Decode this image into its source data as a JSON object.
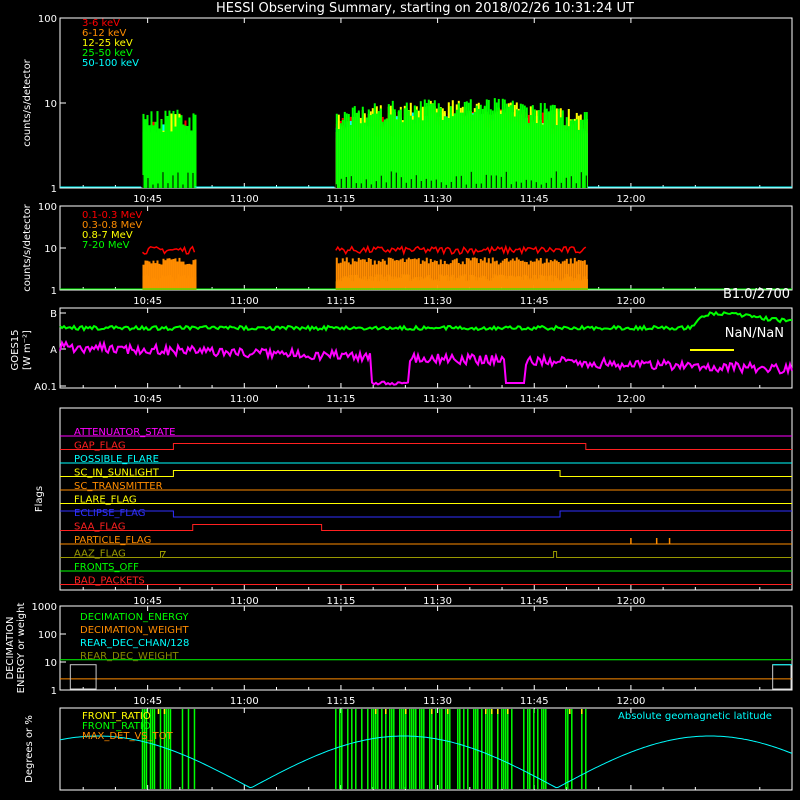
{
  "title": "HESSI Observing Summary, starting on 2018/02/26 10:31:24 UT",
  "time_ticks": [
    "10:45",
    "11:00",
    "11:15",
    "11:30",
    "11:45",
    "12:00"
  ],
  "chart_data": [
    {
      "type": "line",
      "panel": "low-energy",
      "ylabel": "counts/s/detector",
      "yscale": "log",
      "ylim": [
        1,
        100
      ],
      "yticks": [
        "1",
        "10",
        "100"
      ],
      "legend_position": "top-left",
      "time_ranges_observed": [
        [
          "10:44",
          "10:52"
        ],
        [
          "11:14",
          "11:53"
        ]
      ],
      "series": [
        {
          "name": "3-6 keV",
          "color": "#ff0000",
          "level": 5
        },
        {
          "name": "6-12 keV",
          "color": "#ff8c00",
          "level": 3
        },
        {
          "name": "12-25 keV",
          "color": "#ffff00",
          "level": 6
        },
        {
          "name": "25-50 keV",
          "color": "#00ff00",
          "level": 6.5
        },
        {
          "name": "50-100 keV",
          "color": "#00ffff",
          "level": 4.5
        }
      ]
    },
    {
      "type": "line",
      "panel": "high-energy",
      "ylabel": "counts/s/detector",
      "yscale": "log",
      "ylim": [
        1,
        100
      ],
      "yticks": [
        "1",
        "10",
        "100"
      ],
      "legend_position": "top-left",
      "series": [
        {
          "name": "0.1-0.3 MeV",
          "color": "#ff0000",
          "level": 9
        },
        {
          "name": "0.3-0.8 MeV",
          "color": "#ff8c00",
          "level": 5
        },
        {
          "name": "0.8-7 MeV",
          "color": "#ffff00",
          "level": 2
        },
        {
          "name": "7-20 MeV",
          "color": "#00ff00",
          "level": 1
        }
      ]
    },
    {
      "type": "line",
      "panel": "goes",
      "ylabel": "GOES15",
      "ylabel2": "[W m⁻²]",
      "yticks": [
        "A0.1",
        "A",
        "B"
      ],
      "annotation_1": "B1.0/2700",
      "annotation_2": "NaN/NaN",
      "series": [
        {
          "color": "#00ff00"
        },
        {
          "color": "#ff00ff"
        }
      ]
    },
    {
      "type": "line",
      "panel": "flags",
      "ylabel": "Flags",
      "series": [
        {
          "name": "ATTENUATOR_STATE",
          "color": "#ff00ff"
        },
        {
          "name": "GAP_FLAG",
          "color": "#ff2020"
        },
        {
          "name": "POSSIBLE_FLARE",
          "color": "#00ffff"
        },
        {
          "name": "SC_IN_SUNLIGHT",
          "color": "#ffff00"
        },
        {
          "name": "SC_TRANSMITTER",
          "color": "#ff8c00"
        },
        {
          "name": "FLARE_FLAG",
          "color": "#ffff00"
        },
        {
          "name": "ECLIPSE_FLAG",
          "color": "#3030ff"
        },
        {
          "name": "SAA_FLAG",
          "color": "#ff2020"
        },
        {
          "name": "PARTICLE_FLAG",
          "color": "#ff8c00"
        },
        {
          "name": "AAZ_FLAG",
          "color": "#999900"
        },
        {
          "name": "FRONTS_OFF",
          "color": "#00ff00"
        },
        {
          "name": "BAD_PACKETS",
          "color": "#ff2020"
        }
      ]
    },
    {
      "type": "line",
      "panel": "decimation",
      "ylabel": "DECIMATION",
      "ylabel2": "ENERGY or weight",
      "yscale": "log",
      "ylim": [
        1,
        1000
      ],
      "yticks": [
        "1",
        "10",
        "100",
        "1000"
      ],
      "series": [
        {
          "name": "DECIMATION_ENERGY",
          "color": "#00ff00",
          "value": 12
        },
        {
          "name": "DECIMATION_WEIGHT",
          "color": "#ff8c00",
          "value": 2.5
        },
        {
          "name": "REAR_DEC_CHAN/128",
          "color": "#00ffff"
        },
        {
          "name": "REAR_DEC_WEIGHT",
          "color": "#888800"
        }
      ]
    },
    {
      "type": "line",
      "panel": "ratios",
      "ylabel": "Degrees or %",
      "series": [
        {
          "name": "FRONT_RATIO",
          "color": "#ffff00"
        },
        {
          "name": "FRONT_RATIO",
          "color": "#00ff00"
        },
        {
          "name": "MAX_DET_VS_TOT",
          "color": "#ff8c00"
        },
        {
          "name": "Absolute geomagnetic latitude",
          "color": "#00ffff"
        }
      ]
    }
  ]
}
